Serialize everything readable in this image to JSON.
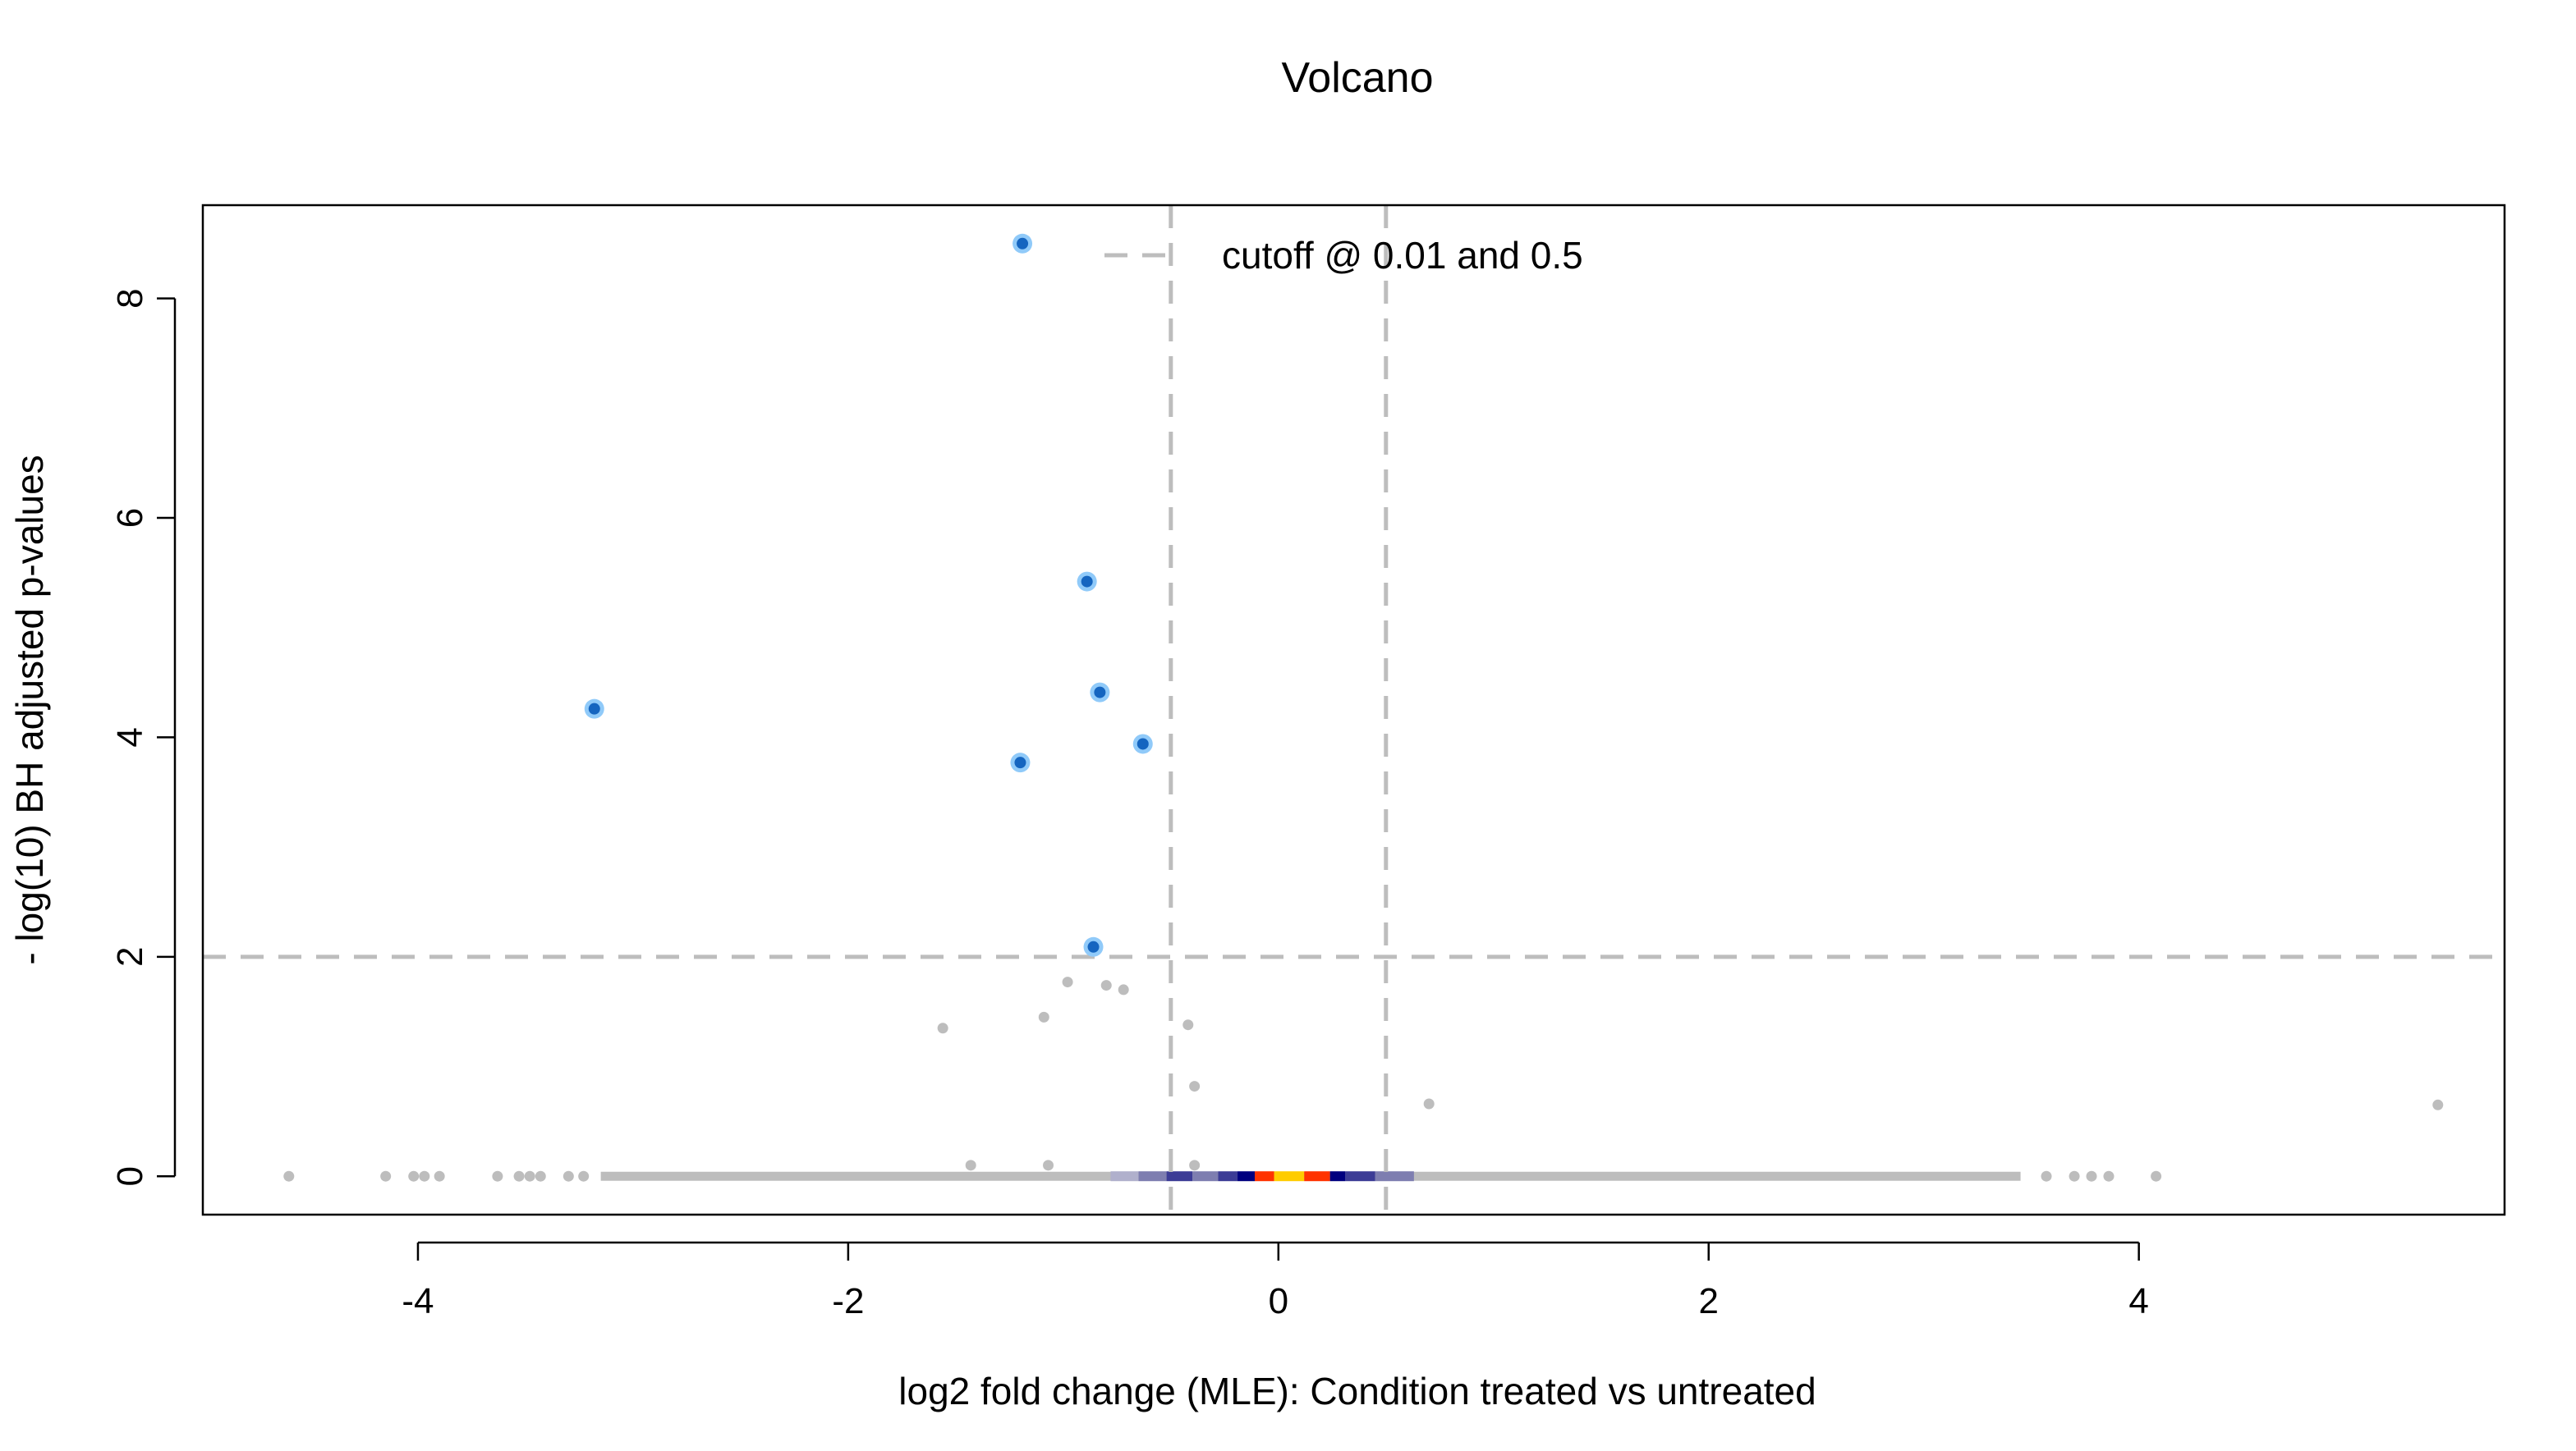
{
  "chart_data": {
    "type": "scatter",
    "title": "Volcano",
    "xlabel": "log2 fold change (MLE): Condition treated vs untreated",
    "ylabel": "- log(10) BH adjusted p-values",
    "xlim": [
      -5.0,
      5.7
    ],
    "ylim": [
      -0.35,
      8.85
    ],
    "x_ticks": [
      -4,
      -2,
      0,
      2,
      4
    ],
    "x_tick_labels": [
      "-4",
      "-2",
      "0",
      "2",
      "4"
    ],
    "y_ticks": [
      0,
      2,
      4,
      6,
      8
    ],
    "y_tick_labels": [
      "0",
      "2",
      "4",
      "6",
      "8"
    ],
    "grid": false,
    "cutoffs": {
      "p_value": 0.01,
      "log2_fold_change": 0.5,
      "neg_log10_padj_line": 2,
      "fold_change_lines": [
        -0.5,
        0.5
      ]
    },
    "legend": {
      "label": "cutoff @ 0.01 and 0.5",
      "position": "top-center"
    },
    "colors": {
      "significant_fill": "#1565C0",
      "significant_halo": "#90CAF9",
      "nonsignificant": "#BDBDBD",
      "cutoff_line": "#BDBDBD",
      "density_ramp": [
        "#B0B0CC",
        "#7E7EB0",
        "#3C3C96",
        "#00007F",
        "#FF3300",
        "#FFCC00"
      ]
    },
    "significant_points": [
      {
        "x": -1.19,
        "y": 8.5
      },
      {
        "x": -0.89,
        "y": 5.42
      },
      {
        "x": -0.83,
        "y": 4.41
      },
      {
        "x": -3.18,
        "y": 4.26
      },
      {
        "x": -0.63,
        "y": 3.94
      },
      {
        "x": -1.2,
        "y": 3.77
      },
      {
        "x": -0.86,
        "y": 2.09
      }
    ],
    "nonsignificant_points": [
      {
        "x": -0.98,
        "y": 1.77
      },
      {
        "x": -0.8,
        "y": 1.74
      },
      {
        "x": -0.72,
        "y": 1.7
      },
      {
        "x": -1.09,
        "y": 1.45
      },
      {
        "x": -0.42,
        "y": 1.38
      },
      {
        "x": -1.56,
        "y": 1.35
      },
      {
        "x": -0.39,
        "y": 0.82
      },
      {
        "x": 0.7,
        "y": 0.66
      },
      {
        "x": 5.39,
        "y": 0.65
      },
      {
        "x": -1.43,
        "y": 0.1
      },
      {
        "x": -1.07,
        "y": 0.1
      },
      {
        "x": -0.39,
        "y": 0.1
      },
      {
        "x": -4.6,
        "y": 0
      },
      {
        "x": -4.15,
        "y": 0
      },
      {
        "x": -4.02,
        "y": 0
      },
      {
        "x": -3.97,
        "y": 0
      },
      {
        "x": -3.9,
        "y": 0
      },
      {
        "x": -3.63,
        "y": 0
      },
      {
        "x": -3.53,
        "y": 0
      },
      {
        "x": -3.48,
        "y": 0
      },
      {
        "x": -3.43,
        "y": 0
      },
      {
        "x": -3.3,
        "y": 0
      },
      {
        "x": -3.23,
        "y": 0
      },
      {
        "x": 3.57,
        "y": 0
      },
      {
        "x": 3.7,
        "y": 0
      },
      {
        "x": 3.78,
        "y": 0
      },
      {
        "x": 3.86,
        "y": 0
      },
      {
        "x": 4.08,
        "y": 0
      }
    ],
    "zero_band": {
      "from": -3.15,
      "to": 3.45,
      "y": 0
    },
    "density_band": [
      {
        "from": -0.78,
        "to": -0.65,
        "level": 0
      },
      {
        "from": -0.65,
        "to": -0.52,
        "level": 1
      },
      {
        "from": -0.52,
        "to": -0.4,
        "level": 2
      },
      {
        "from": -0.4,
        "to": -0.28,
        "level": 1
      },
      {
        "from": -0.28,
        "to": -0.19,
        "level": 2
      },
      {
        "from": -0.19,
        "to": -0.11,
        "level": 3
      },
      {
        "from": -0.11,
        "to": -0.02,
        "level": 4
      },
      {
        "from": -0.02,
        "to": 0.12,
        "level": 5
      },
      {
        "from": 0.12,
        "to": 0.24,
        "level": 4
      },
      {
        "from": 0.24,
        "to": 0.31,
        "level": 3
      },
      {
        "from": 0.31,
        "to": 0.45,
        "level": 2
      },
      {
        "from": 0.45,
        "to": 0.63,
        "level": 1
      }
    ]
  }
}
